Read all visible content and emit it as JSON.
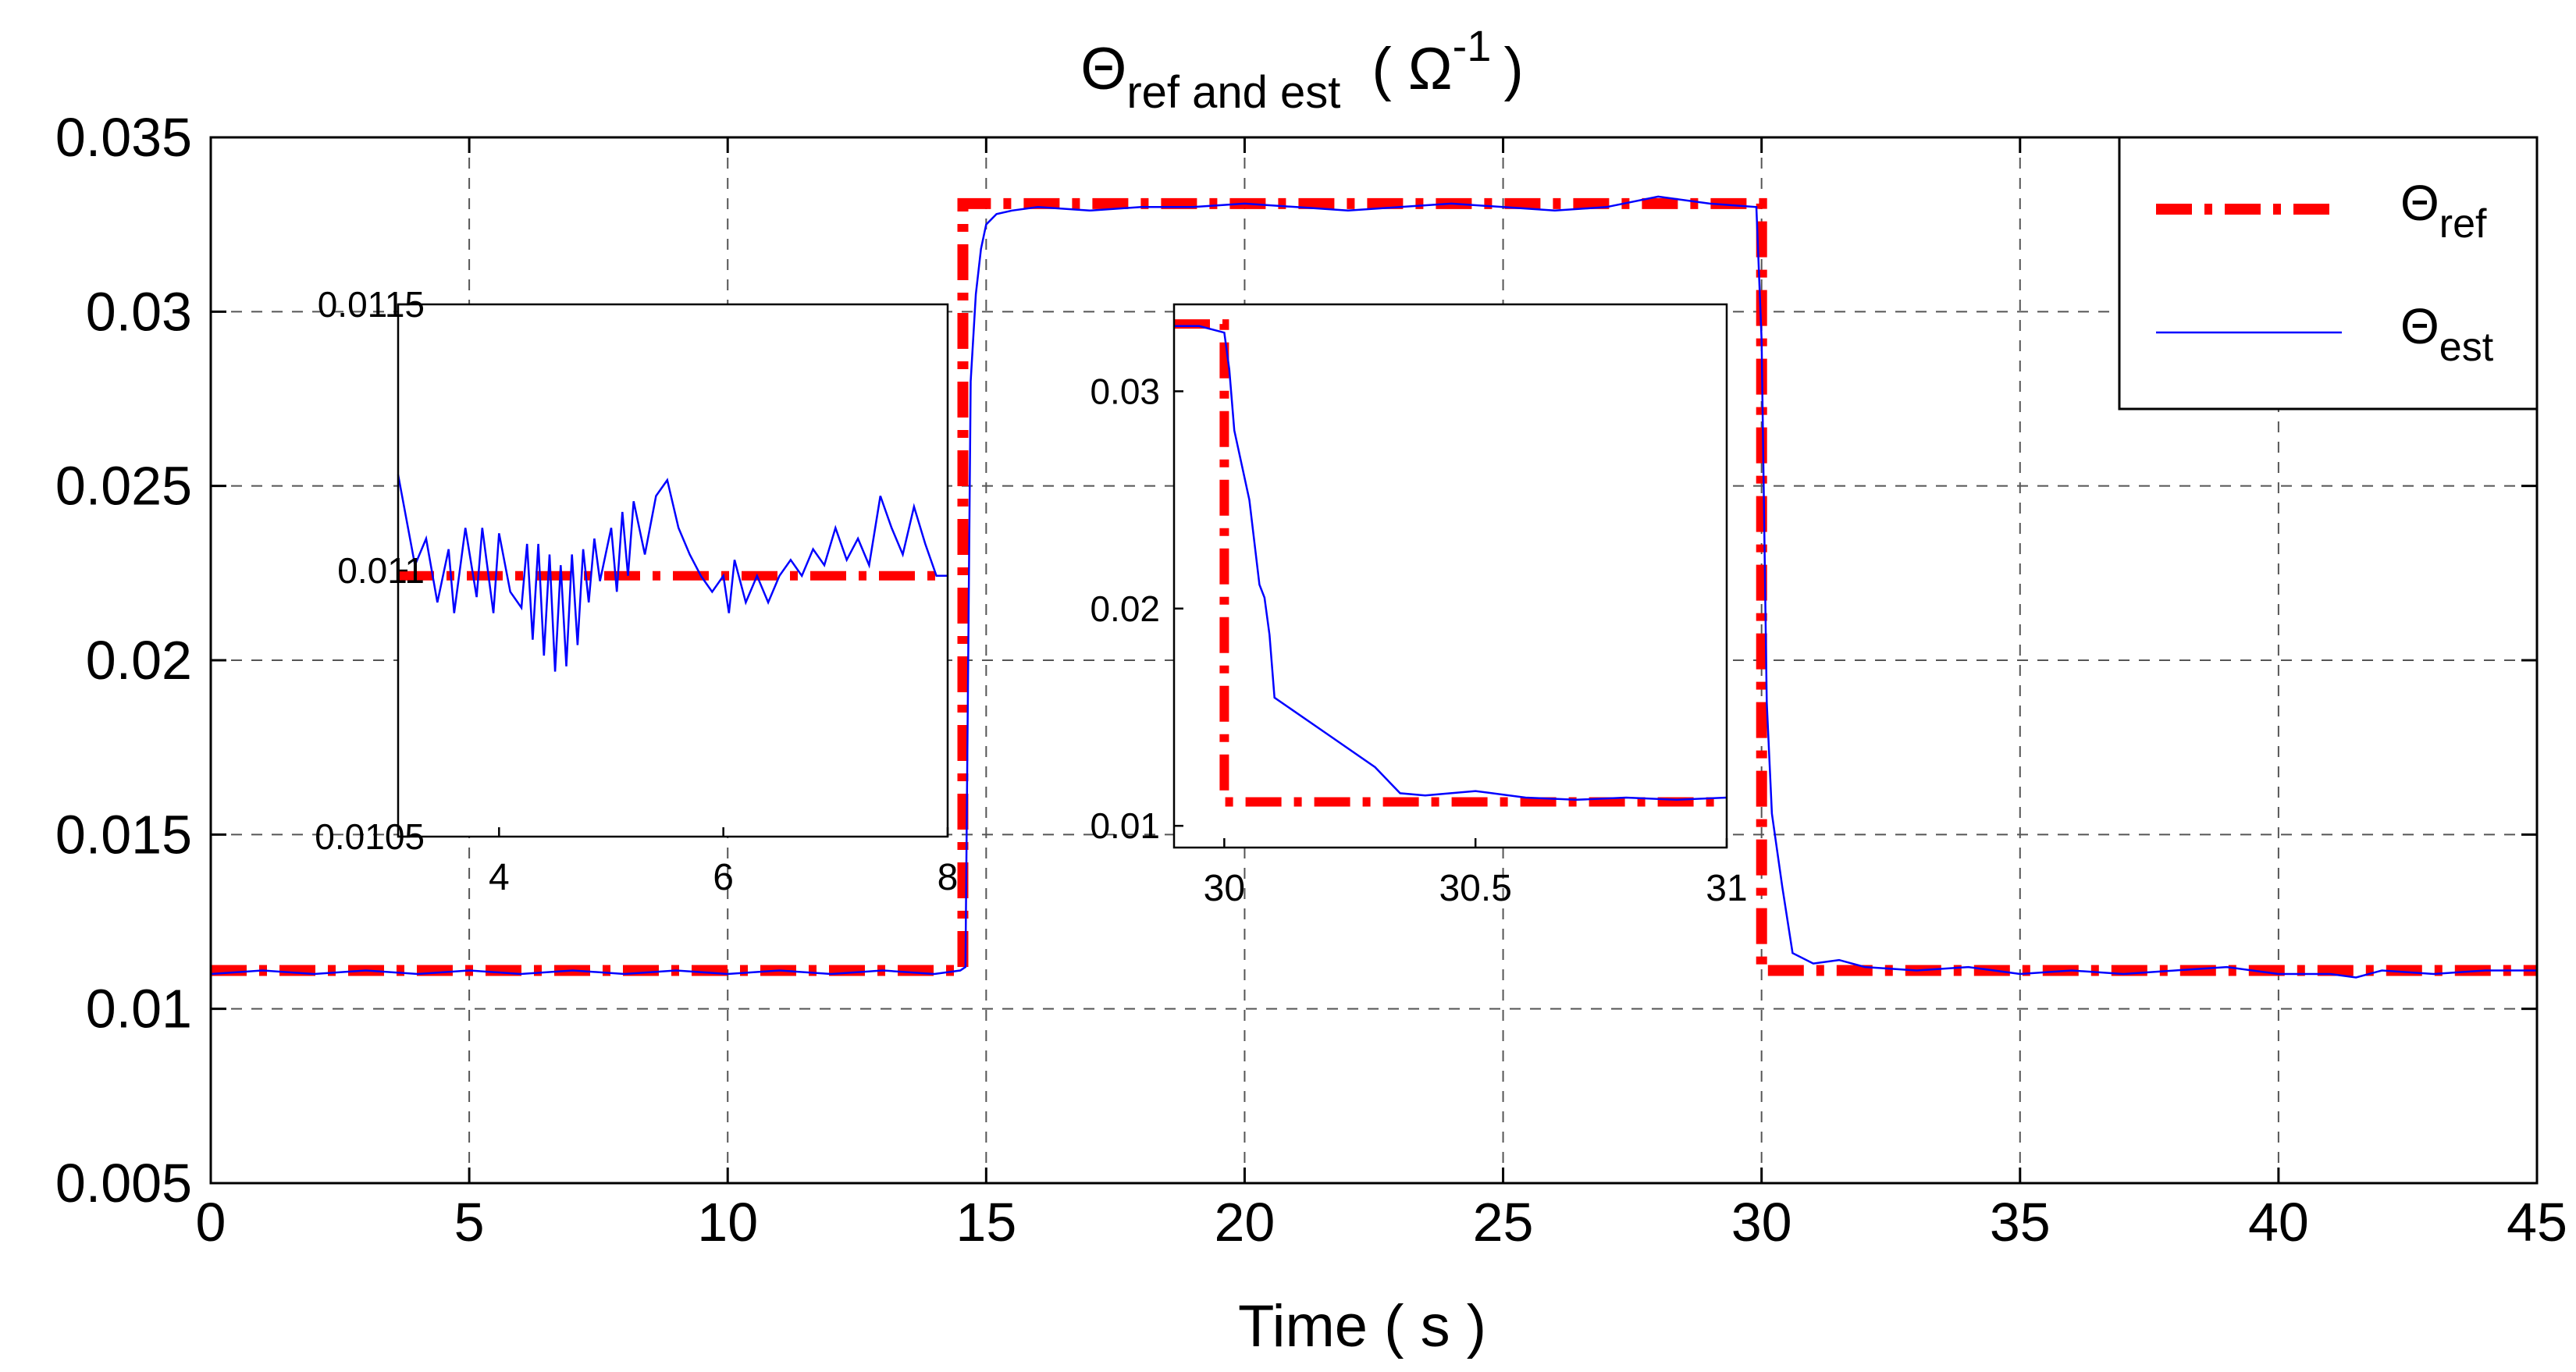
{
  "colors": {
    "reference": "#ff0000",
    "estimate": "#0000ff",
    "axes": "#000000",
    "grid": "#555555",
    "background": "#ffffff"
  },
  "chart_data": [
    {
      "id": "main",
      "type": "line",
      "title": {
        "symbol": "Θ",
        "subscript": "ref and est",
        "unit_open": "( Ω",
        "unit_sup": "-1",
        "unit_close": ")"
      },
      "xlabel": "Time ( s )",
      "ylabel": "",
      "xlim": [
        0,
        45
      ],
      "ylim": [
        0.005,
        0.035
      ],
      "xticks": [
        0,
        5,
        10,
        15,
        20,
        25,
        30,
        35,
        40,
        45
      ],
      "xtick_labels": [
        "0",
        "5",
        "10",
        "15",
        "20",
        "25",
        "30",
        "35",
        "40",
        "45"
      ],
      "yticks": [
        0.005,
        0.01,
        0.015,
        0.02,
        0.025,
        0.03,
        0.035
      ],
      "ytick_labels": [
        "0.005",
        "0.01",
        "0.015",
        "0.02",
        "0.025",
        "0.03",
        "0.035"
      ],
      "grid": true,
      "legend": {
        "position": "top-right",
        "entries": [
          {
            "series": "ref",
            "symbol": "Θ",
            "subscript": "ref"
          },
          {
            "series": "est",
            "symbol": "Θ",
            "subscript": "est"
          }
        ]
      },
      "series": [
        {
          "name": "ref",
          "style": "dash-dot",
          "x": [
            0,
            14.55,
            14.55,
            30.0,
            30.0,
            45
          ],
          "y": [
            0.0111,
            0.0111,
            0.0331,
            0.0331,
            0.0111,
            0.0111
          ]
        },
        {
          "name": "est",
          "style": "solid",
          "x": [
            0,
            1,
            2,
            3,
            4,
            5,
            6,
            7,
            8,
            9,
            10,
            11,
            12,
            13,
            14,
            14.5,
            14.6,
            14.7,
            14.8,
            14.9,
            15.0,
            15.2,
            15.5,
            16,
            17,
            18,
            19,
            20,
            21,
            22,
            23,
            24,
            25,
            26,
            27,
            28,
            29,
            29.9,
            30.0,
            30.1,
            30.2,
            30.4,
            30.6,
            31,
            31.5,
            32,
            33,
            34,
            35,
            36,
            37,
            38,
            39,
            40,
            41,
            41.5,
            42,
            43,
            44,
            45
          ],
          "y": [
            0.011,
            0.0111,
            0.011,
            0.0111,
            0.011,
            0.0111,
            0.011,
            0.0111,
            0.011,
            0.0111,
            0.011,
            0.0111,
            0.011,
            0.0111,
            0.011,
            0.0111,
            0.0112,
            0.028,
            0.0305,
            0.0318,
            0.0325,
            0.0328,
            0.0329,
            0.033,
            0.0329,
            0.033,
            0.033,
            0.0331,
            0.033,
            0.0329,
            0.033,
            0.0331,
            0.033,
            0.0329,
            0.033,
            0.0333,
            0.0331,
            0.033,
            0.0292,
            0.0188,
            0.0156,
            0.0135,
            0.0116,
            0.0113,
            0.0114,
            0.0112,
            0.0111,
            0.0112,
            0.011,
            0.0111,
            0.011,
            0.0111,
            0.0112,
            0.011,
            0.011,
            0.0109,
            0.0111,
            0.011,
            0.0111,
            0.0111
          ]
        }
      ]
    },
    {
      "id": "inset-left",
      "type": "line",
      "xlim": [
        3.1,
        8
      ],
      "ylim": [
        0.0105,
        0.0115
      ],
      "xticks": [
        4,
        6,
        8
      ],
      "xtick_labels": [
        "4",
        "6",
        "8"
      ],
      "yticks": [
        0.0105,
        0.011,
        0.0115
      ],
      "ytick_labels": [
        "0.0105",
        "0.011",
        "0.0115"
      ],
      "grid": false,
      "series": [
        {
          "name": "ref",
          "style": "dash-dot",
          "x": [
            3.1,
            8
          ],
          "y": [
            0.01099,
            0.01099
          ]
        },
        {
          "name": "est",
          "style": "solid",
          "x": [
            3.1,
            3.25,
            3.35,
            3.45,
            3.55,
            3.6,
            3.7,
            3.8,
            3.85,
            3.95,
            4.0,
            4.1,
            4.2,
            4.25,
            4.3,
            4.35,
            4.4,
            4.45,
            4.5,
            4.55,
            4.6,
            4.65,
            4.7,
            4.75,
            4.8,
            4.85,
            4.9,
            5.0,
            5.05,
            5.1,
            5.15,
            5.2,
            5.3,
            5.4,
            5.5,
            5.6,
            5.7,
            5.8,
            5.9,
            6.0,
            6.05,
            6.1,
            6.2,
            6.3,
            6.4,
            6.5,
            6.6,
            6.7,
            6.8,
            6.9,
            7.0,
            7.1,
            7.2,
            7.3,
            7.4,
            7.5,
            7.6,
            7.7,
            7.8,
            7.9,
            8.0
          ],
          "y": [
            0.01118,
            0.01101,
            0.01106,
            0.01094,
            0.01104,
            0.01092,
            0.01108,
            0.01095,
            0.01108,
            0.01092,
            0.01107,
            0.01096,
            0.01093,
            0.01105,
            0.01087,
            0.01105,
            0.01084,
            0.01103,
            0.01081,
            0.01101,
            0.01082,
            0.01103,
            0.01086,
            0.01104,
            0.01094,
            0.01106,
            0.01098,
            0.01108,
            0.01096,
            0.01111,
            0.01099,
            0.01113,
            0.01103,
            0.01114,
            0.01117,
            0.01108,
            0.01103,
            0.01099,
            0.01096,
            0.01099,
            0.01092,
            0.01102,
            0.01094,
            0.01099,
            0.01094,
            0.01099,
            0.01102,
            0.01099,
            0.01104,
            0.01101,
            0.01108,
            0.01102,
            0.01106,
            0.01101,
            0.01114,
            0.01108,
            0.01103,
            0.01112,
            0.01105,
            0.01099,
            0.01099
          ]
        }
      ]
    },
    {
      "id": "inset-right",
      "type": "line",
      "xlim": [
        29.9,
        31
      ],
      "ylim": [
        0.009,
        0.034
      ],
      "xticks": [
        30,
        30.5,
        31
      ],
      "xtick_labels": [
        "30",
        "30.5",
        "31"
      ],
      "yticks": [
        0.01,
        0.02,
        0.03
      ],
      "ytick_labels": [
        "0.01",
        "0.02",
        "0.03"
      ],
      "grid": false,
      "series": [
        {
          "name": "ref",
          "style": "dash-dot",
          "x": [
            29.9,
            30.0,
            30.0,
            31.0
          ],
          "y": [
            0.0331,
            0.0331,
            0.0111,
            0.0111
          ]
        },
        {
          "name": "est",
          "style": "solid",
          "x": [
            29.9,
            29.95,
            30.0,
            30.01,
            30.02,
            30.05,
            30.07,
            30.08,
            30.09,
            30.1,
            30.2,
            30.3,
            30.35,
            30.4,
            30.5,
            30.6,
            30.7,
            30.8,
            30.9,
            31.0
          ],
          "y": [
            0.033,
            0.033,
            0.0327,
            0.031,
            0.0282,
            0.025,
            0.0211,
            0.0205,
            0.0188,
            0.0159,
            0.0143,
            0.0127,
            0.0115,
            0.0114,
            0.0116,
            0.0113,
            0.0112,
            0.0113,
            0.0112,
            0.0113
          ]
        }
      ]
    }
  ]
}
